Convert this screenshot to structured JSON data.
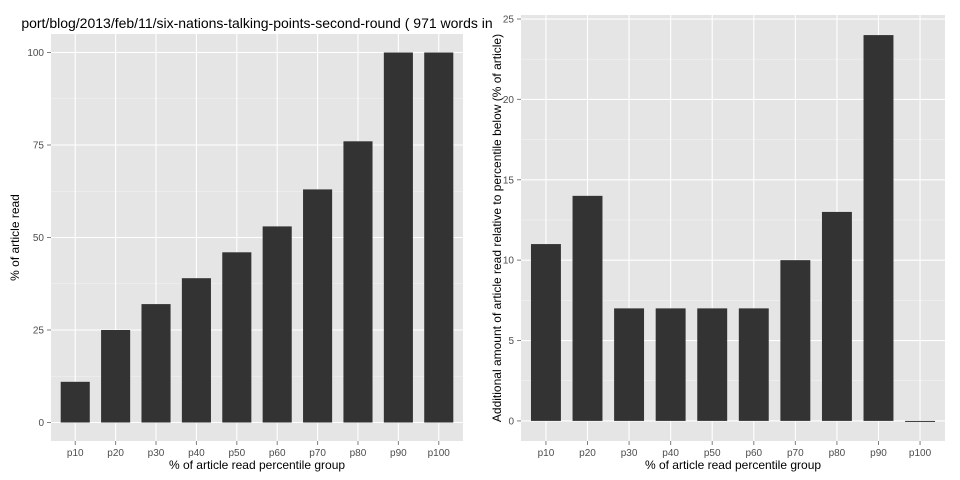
{
  "chart_data": [
    {
      "type": "bar",
      "title": "port/blog/2013/feb/11/six-nations-talking-points-second-round ( 971 words in",
      "xlabel": "% of article read percentile group",
      "ylabel": "% of article read",
      "categories": [
        "p10",
        "p20",
        "p30",
        "p40",
        "p50",
        "p60",
        "p70",
        "p80",
        "p90",
        "p100"
      ],
      "values": [
        11,
        25,
        32,
        39,
        46,
        53,
        63,
        76,
        100,
        100
      ],
      "ylim": [
        -5,
        105
      ],
      "yticks": [
        0,
        25,
        50,
        75,
        100
      ],
      "ytick_labels": [
        "0",
        "25",
        "50",
        "75",
        "100"
      ],
      "grid": true,
      "colors": {
        "bar": "#333333",
        "panel": "#e5e5e5",
        "grid": "#ffffff"
      }
    },
    {
      "type": "bar",
      "title": "",
      "xlabel": "% of article read percentile group",
      "ylabel": "Additional amount of article read relative to percentile below (% of article)",
      "categories": [
        "p10",
        "p20",
        "p30",
        "p40",
        "p50",
        "p60",
        "p70",
        "p80",
        "p90",
        "p100"
      ],
      "values": [
        11,
        14,
        7,
        7,
        7,
        7,
        10,
        13,
        24,
        0
      ],
      "ylim": [
        -1.25,
        25.25
      ],
      "yticks": [
        0,
        5,
        10,
        15,
        20,
        25
      ],
      "ytick_labels": [
        "0",
        "5",
        "10",
        "15",
        "20",
        "25"
      ],
      "grid": true,
      "colors": {
        "bar": "#333333",
        "panel": "#e5e5e5",
        "grid": "#ffffff"
      }
    }
  ]
}
